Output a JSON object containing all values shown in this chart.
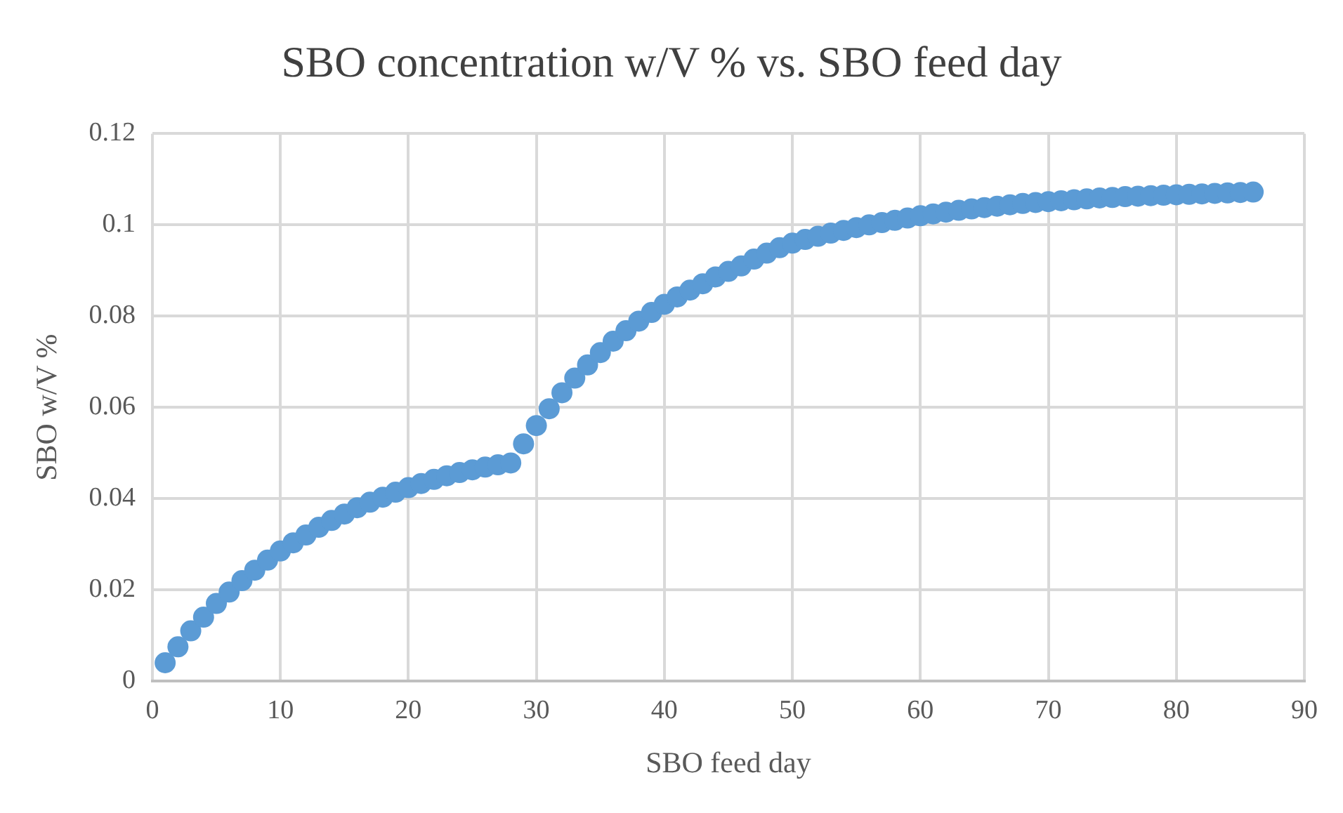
{
  "chart_data": {
    "type": "scatter",
    "title": "SBO concentration w/V % vs. SBO feed day",
    "xlabel": "SBO feed day",
    "ylabel": "SBO w/V %",
    "x": [
      1,
      2,
      3,
      4,
      5,
      6,
      7,
      8,
      9,
      10,
      11,
      12,
      13,
      14,
      15,
      16,
      17,
      18,
      19,
      20,
      21,
      22,
      23,
      24,
      25,
      26,
      27,
      28,
      29,
      30,
      31,
      32,
      33,
      34,
      35,
      36,
      37,
      38,
      39,
      40,
      41,
      42,
      43,
      44,
      45,
      46,
      47,
      48,
      49,
      50,
      51,
      52,
      53,
      54,
      55,
      56,
      57,
      58,
      59,
      60,
      61,
      62,
      63,
      64,
      65,
      66,
      67,
      68,
      69,
      70,
      71,
      72,
      73,
      74,
      75,
      76,
      77,
      78,
      79,
      80,
      81,
      82,
      83,
      84,
      85,
      86
    ],
    "series": [
      {
        "color": "#5b9bd5",
        "values": [
          0.004,
          0.0075,
          0.011,
          0.014,
          0.017,
          0.0195,
          0.022,
          0.0243,
          0.0265,
          0.0285,
          0.0303,
          0.032,
          0.0337,
          0.0352,
          0.0366,
          0.038,
          0.0392,
          0.0403,
          0.0414,
          0.0424,
          0.0433,
          0.0442,
          0.045,
          0.0457,
          0.0463,
          0.0469,
          0.0474,
          0.0478,
          0.052,
          0.056,
          0.0597,
          0.0632,
          0.0664,
          0.0693,
          0.072,
          0.0745,
          0.0768,
          0.0789,
          0.0808,
          0.0826,
          0.0842,
          0.0857,
          0.0871,
          0.0886,
          0.0898,
          0.091,
          0.0925,
          0.0938,
          0.095,
          0.096,
          0.0968,
          0.0975,
          0.0982,
          0.0988,
          0.0994,
          0.1,
          0.1005,
          0.101,
          0.1015,
          0.102,
          0.1024,
          0.1028,
          0.1032,
          0.1035,
          0.1038,
          0.1041,
          0.1044,
          0.1047,
          0.1049,
          0.1051,
          0.1053,
          0.1055,
          0.1057,
          0.1059,
          0.106,
          0.1062,
          0.1063,
          0.1064,
          0.1065,
          0.1066,
          0.1067,
          0.1068,
          0.1069,
          0.107,
          0.1071,
          0.1072
        ]
      }
    ],
    "xlim": [
      0,
      90
    ],
    "xticks": [
      0,
      10,
      20,
      30,
      40,
      50,
      60,
      70,
      80,
      90
    ],
    "ylim": [
      0,
      0.12
    ],
    "yticks": [
      0,
      0.02,
      0.04,
      0.06,
      0.08,
      0.1,
      0.12
    ],
    "grid": true,
    "legend": false,
    "marker": "circle"
  }
}
